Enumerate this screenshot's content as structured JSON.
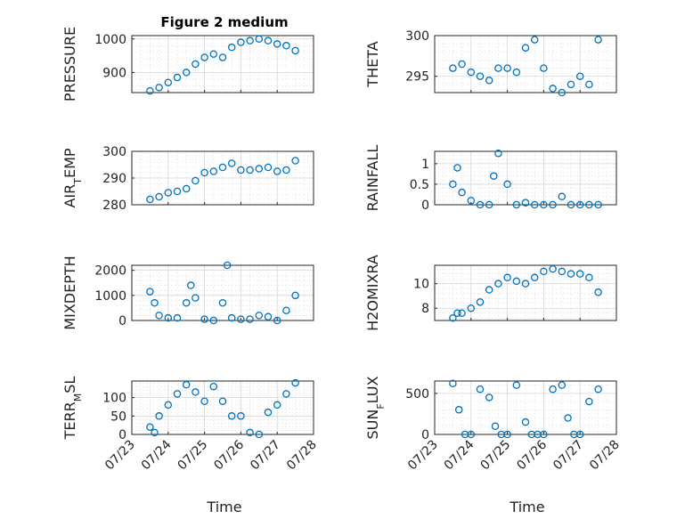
{
  "figure": {
    "title": "Figure 2 medium",
    "colors": {
      "marker": "#0072BD",
      "axis": "#262626",
      "grid": "#d6d6d6"
    }
  },
  "chart_data": [
    {
      "type": "scatter",
      "ylabel": [
        "PRESSURE"
      ],
      "ylim": [
        840,
        1010
      ],
      "yticks": [
        900,
        1000
      ],
      "xlim": [
        "07/23",
        "07/28"
      ],
      "series": [
        {
          "x": [
            "07/23 12:00",
            "07/23 18:00",
            "07/24 00:00",
            "07/24 06:00",
            "07/24 12:00",
            "07/24 18:00",
            "07/25 00:00",
            "07/25 06:00",
            "07/25 12:00",
            "07/25 18:00",
            "07/26 00:00",
            "07/26 06:00",
            "07/26 12:00",
            "07/26 18:00",
            "07/27 00:00",
            "07/27 06:00",
            "07/27 12:00"
          ],
          "values": [
            845,
            855,
            870,
            885,
            900,
            925,
            945,
            955,
            945,
            975,
            990,
            995,
            1000,
            995,
            985,
            980,
            965
          ]
        }
      ]
    },
    {
      "type": "scatter",
      "ylabel": [
        "THETA"
      ],
      "ylim": [
        293,
        300
      ],
      "yticks": [
        295,
        300
      ],
      "xlim": [
        "07/23",
        "07/28"
      ],
      "series": [
        {
          "x": [
            "07/23 12:00",
            "07/23 18:00",
            "07/24 00:00",
            "07/24 06:00",
            "07/24 12:00",
            "07/24 18:00",
            "07/25 00:00",
            "07/25 06:00",
            "07/25 12:00",
            "07/25 18:00",
            "07/26 00:00",
            "07/26 06:00",
            "07/26 12:00",
            "07/26 18:00",
            "07/27 00:00",
            "07/27 06:00",
            "07/27 12:00"
          ],
          "values": [
            296,
            296.5,
            295.5,
            295,
            294.5,
            296,
            296,
            295.5,
            298.5,
            299.5,
            296,
            293.5,
            293,
            294,
            295,
            294,
            299.5
          ]
        }
      ]
    },
    {
      "type": "scatter",
      "ylabel": [
        "AIR",
        "T",
        "EMP"
      ],
      "ylim": [
        280,
        300
      ],
      "yticks": [
        280,
        290,
        300
      ],
      "xlim": [
        "07/23",
        "07/28"
      ],
      "series": [
        {
          "x": [
            "07/23 12:00",
            "07/23 18:00",
            "07/24 00:00",
            "07/24 06:00",
            "07/24 12:00",
            "07/24 18:00",
            "07/25 00:00",
            "07/25 06:00",
            "07/25 12:00",
            "07/25 18:00",
            "07/26 00:00",
            "07/26 06:00",
            "07/26 12:00",
            "07/26 18:00",
            "07/27 00:00",
            "07/27 06:00",
            "07/27 12:00"
          ],
          "values": [
            282,
            283,
            284.5,
            285,
            286,
            289,
            292,
            292.5,
            294,
            295.5,
            293,
            293,
            293.5,
            294,
            292.5,
            293,
            296.5
          ]
        }
      ]
    },
    {
      "type": "scatter",
      "ylabel": [
        "RAINFALL"
      ],
      "ylim": [
        0,
        1.3
      ],
      "yticks": [
        0,
        0.5,
        1
      ],
      "xlim": [
        "07/23",
        "07/28"
      ],
      "series": [
        {
          "x": [
            "07/23 12:00",
            "07/23 15:00",
            "07/23 18:00",
            "07/24 00:00",
            "07/24 06:00",
            "07/24 12:00",
            "07/24 15:00",
            "07/24 18:00",
            "07/25 00:00",
            "07/25 06:00",
            "07/25 12:00",
            "07/25 18:00",
            "07/26 00:00",
            "07/26 06:00",
            "07/26 12:00",
            "07/26 18:00",
            "07/27 00:00",
            "07/27 06:00",
            "07/27 12:00"
          ],
          "values": [
            0.5,
            0.9,
            0.3,
            0.1,
            0,
            0,
            0.7,
            1.25,
            0.5,
            0,
            0.05,
            0,
            0,
            0,
            0.2,
            0,
            0,
            0,
            0
          ]
        }
      ]
    },
    {
      "type": "scatter",
      "ylabel": [
        "MIXDEPTH"
      ],
      "ylim": [
        0,
        2200
      ],
      "yticks": [
        0,
        1000,
        2000
      ],
      "xlim": [
        "07/23",
        "07/28"
      ],
      "series": [
        {
          "x": [
            "07/23 12:00",
            "07/23 15:00",
            "07/23 18:00",
            "07/24 00:00",
            "07/24 06:00",
            "07/24 12:00",
            "07/24 15:00",
            "07/24 18:00",
            "07/25 00:00",
            "07/25 06:00",
            "07/25 12:00",
            "07/25 15:00",
            "07/25 18:00",
            "07/26 00:00",
            "07/26 06:00",
            "07/26 12:00",
            "07/26 18:00",
            "07/27 00:00",
            "07/27 06:00",
            "07/27 12:00"
          ],
          "values": [
            1150,
            700,
            200,
            100,
            100,
            700,
            1400,
            900,
            50,
            0,
            700,
            2200,
            100,
            50,
            50,
            200,
            150,
            0,
            400,
            1000
          ]
        }
      ]
    },
    {
      "type": "scatter",
      "ylabel": [
        "H2OMIXRA"
      ],
      "ylim": [
        7,
        11.5
      ],
      "yticks": [
        8,
        10
      ],
      "xlim": [
        "07/23",
        "07/28"
      ],
      "series": [
        {
          "x": [
            "07/23 12:00",
            "07/23 15:00",
            "07/23 18:00",
            "07/24 00:00",
            "07/24 06:00",
            "07/24 12:00",
            "07/24 18:00",
            "07/25 00:00",
            "07/25 06:00",
            "07/25 12:00",
            "07/25 18:00",
            "07/26 00:00",
            "07/26 06:00",
            "07/26 12:00",
            "07/26 18:00",
            "07/27 00:00",
            "07/27 06:00",
            "07/27 12:00"
          ],
          "values": [
            7.2,
            7.6,
            7.6,
            8,
            8.5,
            9.5,
            10,
            10.5,
            10.2,
            10,
            10.5,
            11,
            11.2,
            11,
            10.8,
            10.8,
            10.5,
            9.3
          ]
        }
      ]
    },
    {
      "type": "scatter",
      "ylabel": [
        "TERR",
        "M",
        "SL"
      ],
      "ylim": [
        0,
        145
      ],
      "yticks": [
        0,
        50,
        100
      ],
      "xlim": [
        "07/23",
        "07/28"
      ],
      "series": [
        {
          "x": [
            "07/23 12:00",
            "07/23 15:00",
            "07/23 18:00",
            "07/24 00:00",
            "07/24 06:00",
            "07/24 12:00",
            "07/24 18:00",
            "07/25 00:00",
            "07/25 06:00",
            "07/25 12:00",
            "07/25 18:00",
            "07/26 00:00",
            "07/26 06:00",
            "07/26 12:00",
            "07/26 18:00",
            "07/27 00:00",
            "07/27 06:00",
            "07/27 12:00"
          ],
          "values": [
            20,
            5,
            50,
            80,
            110,
            135,
            115,
            90,
            130,
            90,
            50,
            50,
            5,
            0,
            60,
            80,
            110,
            140
          ]
        }
      ]
    },
    {
      "type": "scatter",
      "ylabel": [
        "SUN",
        "F",
        "LUX"
      ],
      "ylim": [
        0,
        650
      ],
      "yticks": [
        0,
        500
      ],
      "xlim": [
        "07/23",
        "07/28"
      ],
      "series": [
        {
          "x": [
            "07/23 12:00",
            "07/23 16:00",
            "07/23 20:00",
            "07/24 00:00",
            "07/24 06:00",
            "07/24 12:00",
            "07/24 16:00",
            "07/24 20:00",
            "07/25 00:00",
            "07/25 06:00",
            "07/25 12:00",
            "07/25 16:00",
            "07/25 20:00",
            "07/26 00:00",
            "07/26 06:00",
            "07/26 12:00",
            "07/26 16:00",
            "07/26 20:00",
            "07/27 00:00",
            "07/27 06:00",
            "07/27 12:00"
          ],
          "values": [
            620,
            300,
            0,
            0,
            550,
            450,
            100,
            0,
            0,
            600,
            150,
            0,
            0,
            0,
            550,
            600,
            200,
            0,
            0,
            400,
            550
          ]
        }
      ]
    }
  ],
  "xticks": [
    "07/23",
    "07/24",
    "07/25",
    "07/26",
    "07/27",
    "07/28"
  ],
  "xlabel": "Time"
}
